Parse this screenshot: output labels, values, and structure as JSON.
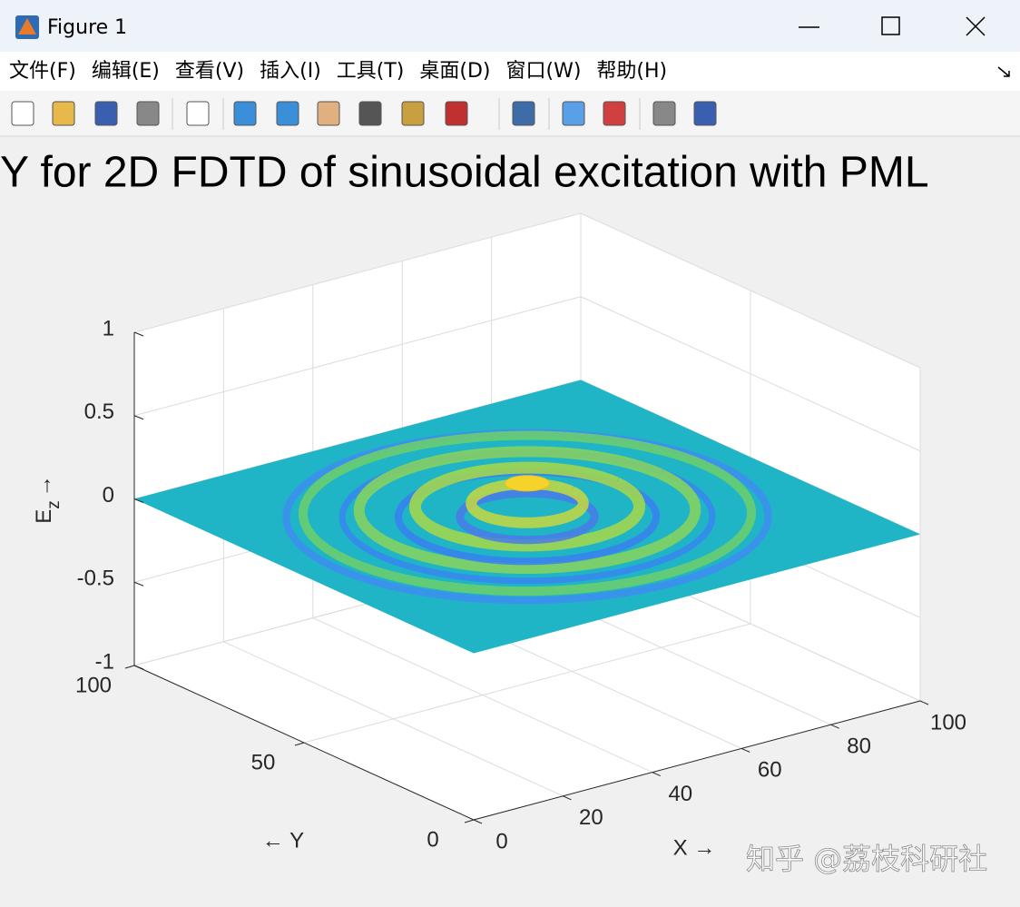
{
  "window": {
    "title": "Figure 1"
  },
  "menu": [
    "文件(F)",
    "编辑(E)",
    "查看(V)",
    "插入(I)",
    "工具(T)",
    "桌面(D)",
    "窗口(W)",
    "帮助(H)"
  ],
  "chart_data": {
    "type": "surface",
    "title": "Y for 2D FDTD of sinusoidal excitation with PML",
    "xlabel": "X →",
    "ylabel": "← Y",
    "zlabel": [
      "E",
      "z",
      "→"
    ],
    "xlim": [
      0,
      100
    ],
    "ylim": [
      0,
      100
    ],
    "zlim": [
      -1,
      1
    ],
    "xticks": [
      0,
      20,
      40,
      60,
      80,
      100
    ],
    "yticks": [
      0,
      50,
      100
    ],
    "zticks": [
      -1,
      -0.5,
      0,
      0.5,
      1
    ],
    "grid": true
  },
  "watermark": "知乎 @荔枝科研社"
}
